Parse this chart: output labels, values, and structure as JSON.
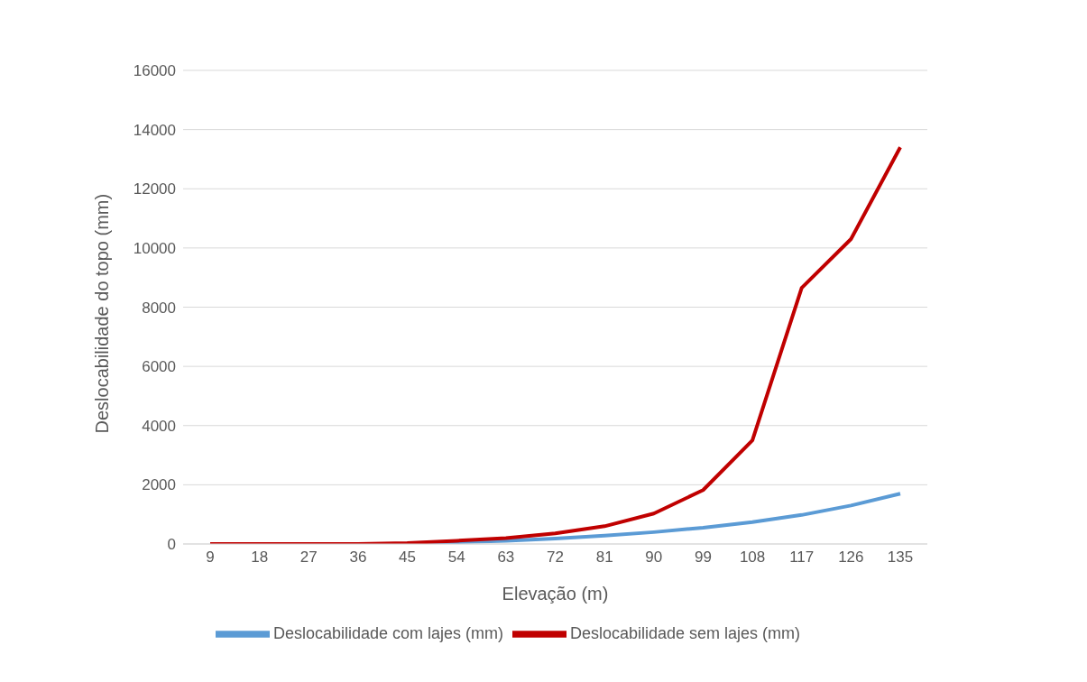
{
  "chart_data": {
    "type": "line",
    "xlabel": "Elevação (m)",
    "ylabel": "Deslocabilidade do topo (mm)",
    "categories": [
      "9",
      "18",
      "27",
      "36",
      "45",
      "54",
      "63",
      "72",
      "81",
      "90",
      "99",
      "108",
      "117",
      "126",
      "135"
    ],
    "series": [
      {
        "name": "Deslocabilidade com lajes (mm)",
        "color": "#5b9bd5",
        "values": [
          null,
          null,
          null,
          null,
          20,
          60,
          110,
          180,
          280,
          400,
          550,
          740,
          980,
          1300,
          1700
        ]
      },
      {
        "name": "Deslocabilidade sem lajes (mm)",
        "color": "#c00000",
        "values": [
          0,
          0,
          0,
          0,
          30,
          110,
          200,
          360,
          600,
          1030,
          1820,
          3500,
          8650,
          10300,
          13400
        ]
      }
    ],
    "ylim": [
      0,
      16000
    ],
    "yticks": [
      0,
      2000,
      4000,
      6000,
      8000,
      10000,
      12000,
      14000,
      16000
    ],
    "grid": "y",
    "legend": "bottom",
    "marker": "none",
    "line_style": "solid"
  }
}
